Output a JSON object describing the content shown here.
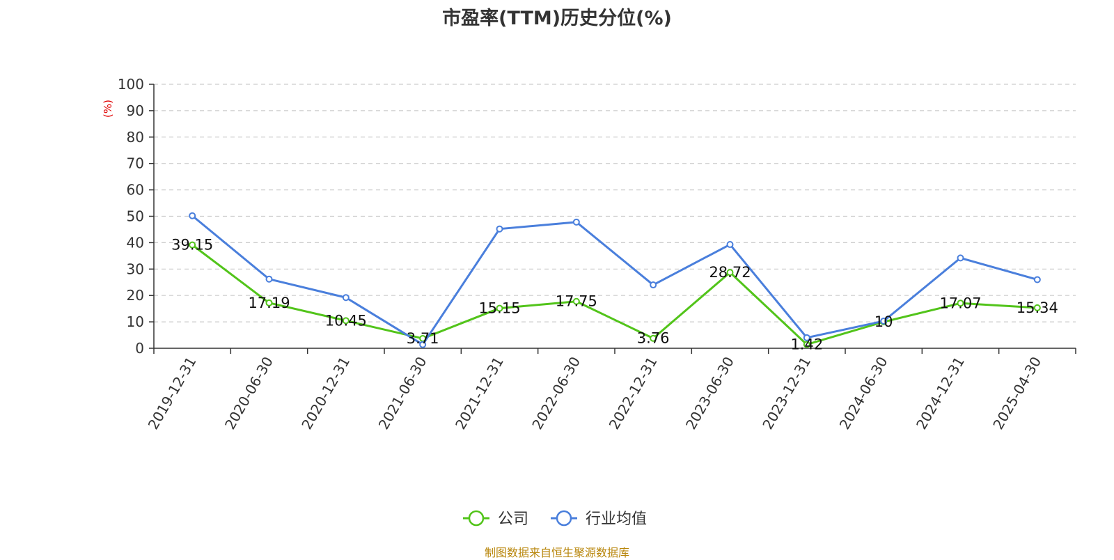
{
  "chart_data": {
    "type": "line",
    "title": "市盈率(TTM)历史分位(%)",
    "ylabel": "(%)",
    "ylim": [
      0,
      100
    ],
    "yticks": [
      0,
      10,
      20,
      30,
      40,
      50,
      60,
      70,
      80,
      90,
      100
    ],
    "grid": true,
    "legend_position": "bottom",
    "categories": [
      "2019-12-31",
      "2020-06-30",
      "2020-12-31",
      "2021-06-30",
      "2021-12-31",
      "2022-06-30",
      "2022-12-31",
      "2023-06-30",
      "2023-12-31",
      "2024-06-30",
      "2024-12-31",
      "2025-04-30"
    ],
    "series": [
      {
        "name": "公司",
        "color": "#52c41a",
        "values": [
          39.15,
          17.19,
          10.45,
          3.71,
          15.15,
          17.75,
          3.76,
          28.72,
          1.42,
          10,
          17.07,
          15.34
        ],
        "labels": [
          "39.15",
          "17.19",
          "10.45",
          "3.71",
          "15.15",
          "17.75",
          "3.76",
          "28.72",
          "1.42",
          "10",
          "17.07",
          "15.34"
        ]
      },
      {
        "name": "行业均值",
        "color": "#4a7fdc",
        "values": [
          50.2,
          26.2,
          19.2,
          1.4,
          45.2,
          47.8,
          24.0,
          39.3,
          4.0,
          10.3,
          34.2,
          26.0
        ]
      }
    ]
  },
  "footer": {
    "source": "制图数据来自恒生聚源数据库"
  }
}
